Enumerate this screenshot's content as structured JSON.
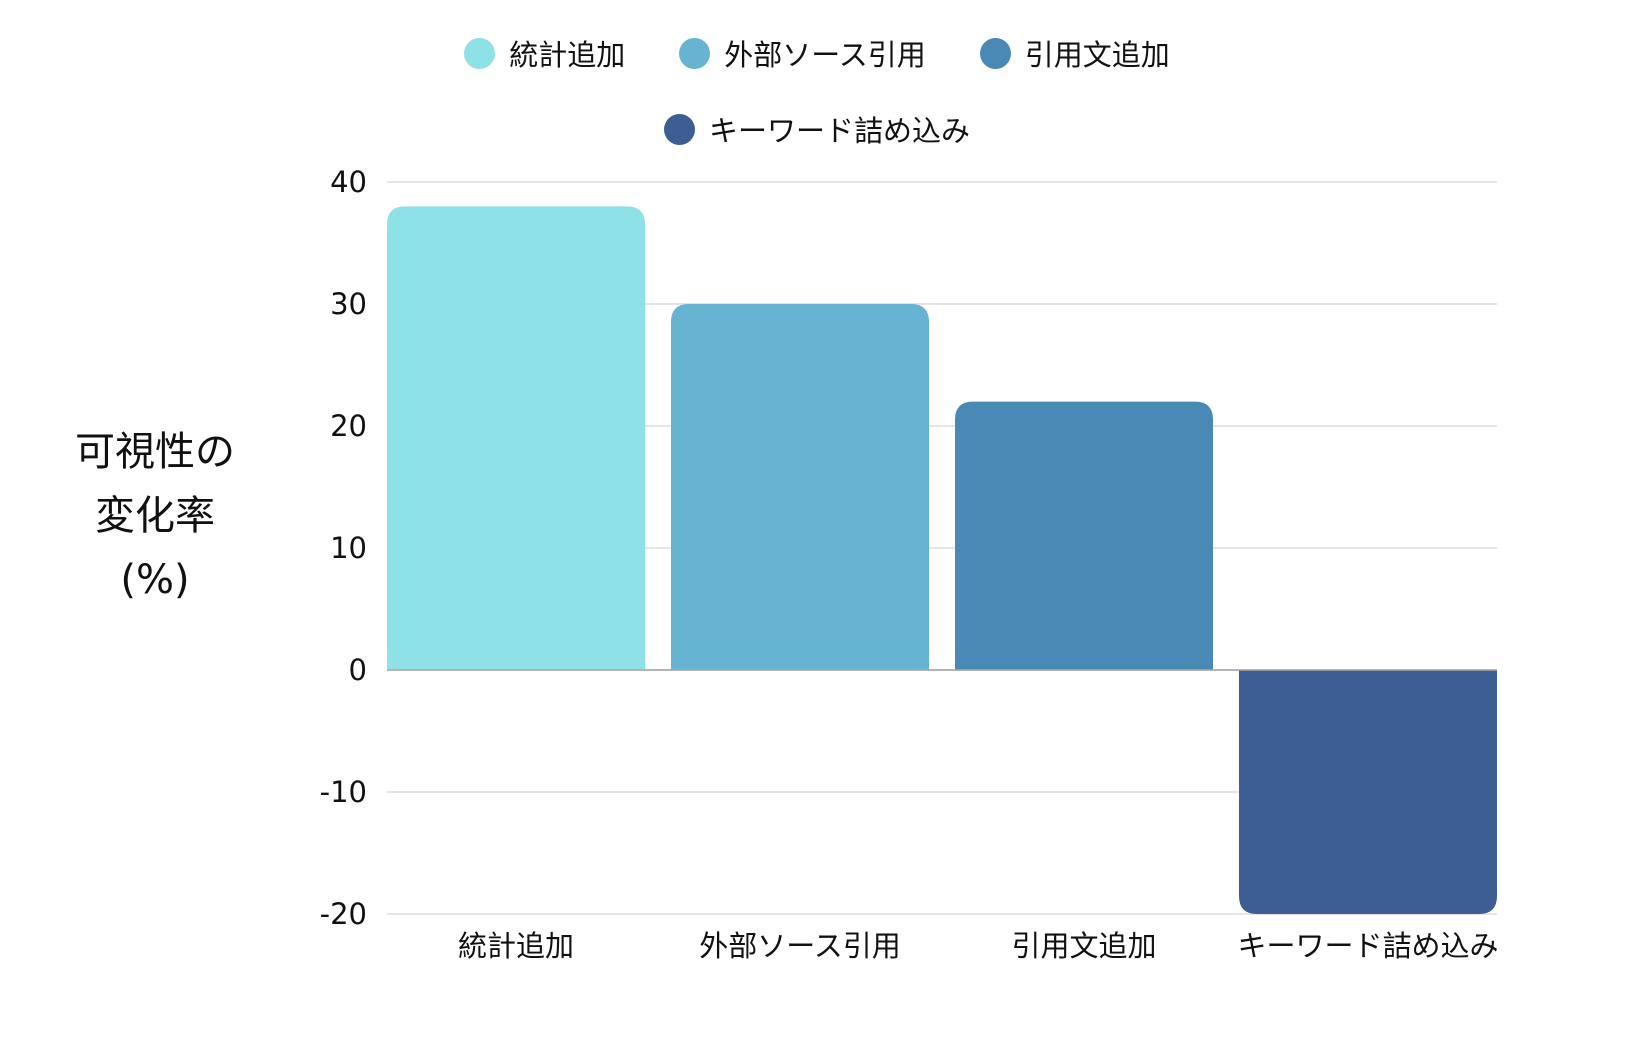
{
  "chart_data": {
    "type": "bar",
    "title": "",
    "xlabel": "",
    "ylabel": "可視性の\n変化率\n(%)",
    "categories": [
      "統計追加",
      "外部ソース引用",
      "引用文追加",
      "キーワード詰め込み"
    ],
    "values": [
      38,
      30,
      22,
      -20
    ],
    "colors": [
      "#8ee1e6",
      "#66b3d2",
      "#4a89b5",
      "#3c5e92"
    ],
    "ylim": [
      -20,
      40
    ],
    "yticks": [
      40,
      30,
      20,
      10,
      0,
      -10,
      -20
    ],
    "grid": true,
    "legend": {
      "placement": "top",
      "entries": [
        "統計追加",
        "外部ソース引用",
        "引用文追加",
        "キーワード詰め込み"
      ]
    }
  }
}
